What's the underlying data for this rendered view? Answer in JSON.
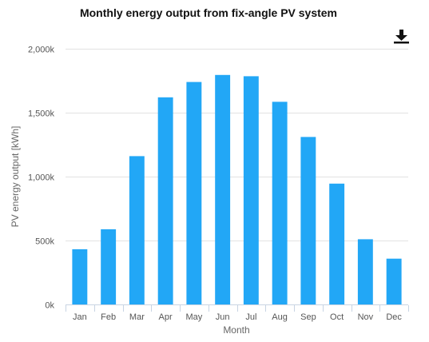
{
  "chart_data": {
    "type": "bar",
    "title": "Monthly energy output from fix-angle PV system",
    "xlabel": "Month",
    "ylabel": "PV energy output [kWh]",
    "categories": [
      "Jan",
      "Feb",
      "Mar",
      "Apr",
      "May",
      "Jun",
      "Jul",
      "Aug",
      "Sep",
      "Oct",
      "Nov",
      "Dec"
    ],
    "values": [
      432000,
      588000,
      1160000,
      1620000,
      1740000,
      1795000,
      1785000,
      1585000,
      1310000,
      945000,
      510000,
      358000
    ],
    "ylim": [
      0,
      2000000
    ],
    "yticks": [
      0,
      500000,
      1000000,
      1500000,
      2000000
    ],
    "ytick_labels": [
      "0k",
      "500k",
      "1,000k",
      "1,500k",
      "2,000k"
    ],
    "grid": true,
    "bar_color": "#22a7f6"
  },
  "toolbar": {
    "download_icon": "download-icon"
  }
}
